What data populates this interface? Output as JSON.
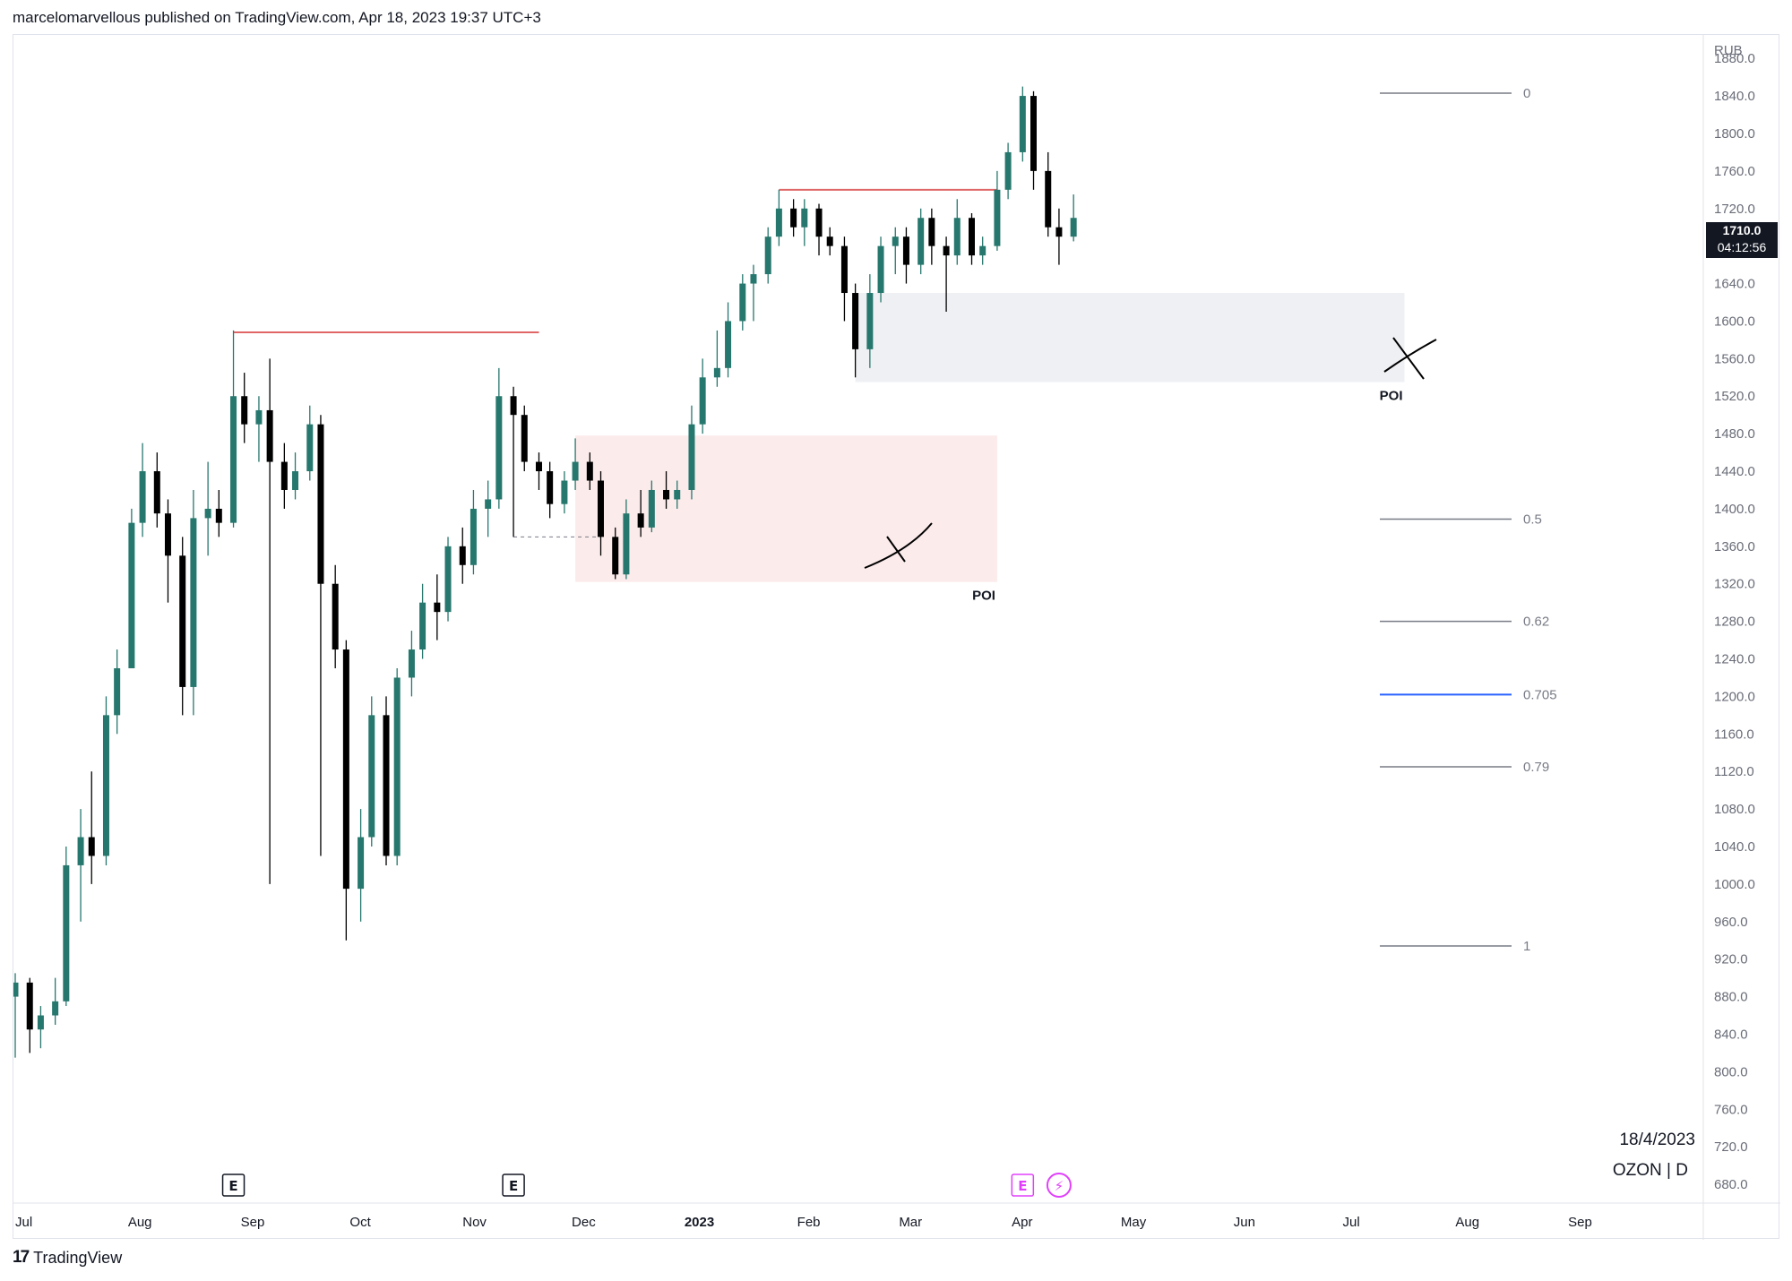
{
  "header": {
    "publisher_text": "marcelomarvellous published on TradingView.com, Apr 18, 2023 19:37 UTC+3"
  },
  "footer": {
    "brand_icon": "17",
    "brand_name": "TradingView"
  },
  "stamp": {
    "date": "18/4/2023",
    "symbol": "OZON | D"
  },
  "last_price": {
    "price": "1710.0",
    "countdown": "04:12:56"
  },
  "colors": {
    "bull": "#26776d",
    "bear": "#000000",
    "resistance": "#e06666",
    "poi_pink": "#fcebeb",
    "poi_gray": "#eff0f4",
    "fib_line": "#787b86",
    "fib_highlight": "#2962ff",
    "event_pink": "#e040fb"
  },
  "chart_data": {
    "type": "candlestick",
    "symbol": "OZON",
    "interval": "D",
    "currency": "RUB",
    "y_axis": {
      "unit_label": "RUB",
      "ticks": [
        "1880.0",
        "1840.0",
        "1800.0",
        "1760.0",
        "1720.0",
        "1680.0",
        "1640.0",
        "1600.0",
        "1560.0",
        "1520.0",
        "1480.0",
        "1440.0",
        "1400.0",
        "1360.0",
        "1320.0",
        "1280.0",
        "1240.0",
        "1200.0",
        "1160.0",
        "1120.0",
        "1080.0",
        "1040.0",
        "1000.0",
        "960.0",
        "920.0",
        "880.0",
        "840.0",
        "800.0",
        "760.0",
        "720.0",
        "680.0"
      ],
      "range": [
        660,
        1905
      ]
    },
    "x_axis": {
      "ticks": [
        "Jul",
        "Aug",
        "Sep",
        "Oct",
        "Nov",
        "Dec",
        "2023",
        "Feb",
        "Mar",
        "Apr",
        "May",
        "Jun",
        "Jul",
        "Aug",
        "Sep"
      ]
    },
    "candles": [
      {
        "date": "2022-07-01",
        "o": 880,
        "h": 905,
        "l": 815,
        "c": 895
      },
      {
        "date": "2022-07-05",
        "o": 895,
        "h": 900,
        "l": 820,
        "c": 845
      },
      {
        "date": "2022-07-08",
        "o": 845,
        "h": 870,
        "l": 825,
        "c": 860
      },
      {
        "date": "2022-07-12",
        "o": 860,
        "h": 900,
        "l": 850,
        "c": 875
      },
      {
        "date": "2022-07-15",
        "o": 875,
        "h": 1040,
        "l": 870,
        "c": 1020
      },
      {
        "date": "2022-07-19",
        "o": 1020,
        "h": 1080,
        "l": 960,
        "c": 1050
      },
      {
        "date": "2022-07-22",
        "o": 1050,
        "h": 1120,
        "l": 1000,
        "c": 1030
      },
      {
        "date": "2022-07-26",
        "o": 1030,
        "h": 1200,
        "l": 1020,
        "c": 1180
      },
      {
        "date": "2022-07-29",
        "o": 1180,
        "h": 1250,
        "l": 1160,
        "c": 1230
      },
      {
        "date": "2022-08-02",
        "o": 1230,
        "h": 1400,
        "l": 1230,
        "c": 1385
      },
      {
        "date": "2022-08-05",
        "o": 1385,
        "h": 1470,
        "l": 1370,
        "c": 1440
      },
      {
        "date": "2022-08-09",
        "o": 1440,
        "h": 1460,
        "l": 1380,
        "c": 1395
      },
      {
        "date": "2022-08-12",
        "o": 1395,
        "h": 1410,
        "l": 1300,
        "c": 1350
      },
      {
        "date": "2022-08-16",
        "o": 1350,
        "h": 1370,
        "l": 1180,
        "c": 1210
      },
      {
        "date": "2022-08-19",
        "o": 1210,
        "h": 1420,
        "l": 1180,
        "c": 1390
      },
      {
        "date": "2022-08-23",
        "o": 1390,
        "h": 1450,
        "l": 1350,
        "c": 1400
      },
      {
        "date": "2022-08-26",
        "o": 1400,
        "h": 1420,
        "l": 1370,
        "c": 1385
      },
      {
        "date": "2022-08-30",
        "o": 1385,
        "h": 1590,
        "l": 1380,
        "c": 1520
      },
      {
        "date": "2022-09-02",
        "o": 1520,
        "h": 1545,
        "l": 1470,
        "c": 1490
      },
      {
        "date": "2022-09-06",
        "o": 1490,
        "h": 1520,
        "l": 1450,
        "c": 1505
      },
      {
        "date": "2022-09-09",
        "o": 1505,
        "h": 1560,
        "l": 1000,
        "c": 1450
      },
      {
        "date": "2022-09-13",
        "o": 1450,
        "h": 1470,
        "l": 1400,
        "c": 1420
      },
      {
        "date": "2022-09-16",
        "o": 1420,
        "h": 1460,
        "l": 1410,
        "c": 1440
      },
      {
        "date": "2022-09-20",
        "o": 1440,
        "h": 1510,
        "l": 1430,
        "c": 1490
      },
      {
        "date": "2022-09-23",
        "o": 1490,
        "h": 1500,
        "l": 1030,
        "c": 1320
      },
      {
        "date": "2022-09-27",
        "o": 1320,
        "h": 1340,
        "l": 1230,
        "c": 1250
      },
      {
        "date": "2022-09-30",
        "o": 1250,
        "h": 1260,
        "l": 940,
        "c": 995
      },
      {
        "date": "2022-10-04",
        "o": 995,
        "h": 1080,
        "l": 960,
        "c": 1050
      },
      {
        "date": "2022-10-07",
        "o": 1050,
        "h": 1200,
        "l": 1040,
        "c": 1180
      },
      {
        "date": "2022-10-11",
        "o": 1180,
        "h": 1200,
        "l": 1020,
        "c": 1030
      },
      {
        "date": "2022-10-14",
        "o": 1030,
        "h": 1230,
        "l": 1020,
        "c": 1220
      },
      {
        "date": "2022-10-18",
        "o": 1220,
        "h": 1270,
        "l": 1200,
        "c": 1250
      },
      {
        "date": "2022-10-21",
        "o": 1250,
        "h": 1320,
        "l": 1240,
        "c": 1300
      },
      {
        "date": "2022-10-25",
        "o": 1300,
        "h": 1330,
        "l": 1260,
        "c": 1290
      },
      {
        "date": "2022-10-28",
        "o": 1290,
        "h": 1370,
        "l": 1280,
        "c": 1360
      },
      {
        "date": "2022-11-01",
        "o": 1360,
        "h": 1380,
        "l": 1320,
        "c": 1340
      },
      {
        "date": "2022-11-04",
        "o": 1340,
        "h": 1420,
        "l": 1330,
        "c": 1400
      },
      {
        "date": "2022-11-08",
        "o": 1400,
        "h": 1430,
        "l": 1370,
        "c": 1410
      },
      {
        "date": "2022-11-11",
        "o": 1410,
        "h": 1550,
        "l": 1400,
        "c": 1520
      },
      {
        "date": "2022-11-15",
        "o": 1520,
        "h": 1530,
        "l": 1370,
        "c": 1500
      },
      {
        "date": "2022-11-18",
        "o": 1500,
        "h": 1510,
        "l": 1440,
        "c": 1450
      },
      {
        "date": "2022-11-22",
        "o": 1450,
        "h": 1460,
        "l": 1420,
        "c": 1440
      },
      {
        "date": "2022-11-25",
        "o": 1440,
        "h": 1450,
        "l": 1390,
        "c": 1405
      },
      {
        "date": "2022-11-29",
        "o": 1405,
        "h": 1440,
        "l": 1395,
        "c": 1430
      },
      {
        "date": "2022-12-02",
        "o": 1430,
        "h": 1475,
        "l": 1420,
        "c": 1450
      },
      {
        "date": "2022-12-06",
        "o": 1450,
        "h": 1460,
        "l": 1420,
        "c": 1430
      },
      {
        "date": "2022-12-09",
        "o": 1430,
        "h": 1440,
        "l": 1350,
        "c": 1370
      },
      {
        "date": "2022-12-13",
        "o": 1370,
        "h": 1380,
        "l": 1325,
        "c": 1330
      },
      {
        "date": "2022-12-16",
        "o": 1330,
        "h": 1410,
        "l": 1325,
        "c": 1395
      },
      {
        "date": "2022-12-20",
        "o": 1395,
        "h": 1420,
        "l": 1370,
        "c": 1380
      },
      {
        "date": "2022-12-23",
        "o": 1380,
        "h": 1430,
        "l": 1375,
        "c": 1420
      },
      {
        "date": "2022-12-27",
        "o": 1420,
        "h": 1440,
        "l": 1400,
        "c": 1410
      },
      {
        "date": "2022-12-30",
        "o": 1410,
        "h": 1430,
        "l": 1400,
        "c": 1420
      },
      {
        "date": "2023-01-03",
        "o": 1420,
        "h": 1510,
        "l": 1410,
        "c": 1490
      },
      {
        "date": "2023-01-06",
        "o": 1490,
        "h": 1560,
        "l": 1480,
        "c": 1540
      },
      {
        "date": "2023-01-10",
        "o": 1540,
        "h": 1590,
        "l": 1530,
        "c": 1550
      },
      {
        "date": "2023-01-13",
        "o": 1550,
        "h": 1620,
        "l": 1540,
        "c": 1600
      },
      {
        "date": "2023-01-17",
        "o": 1600,
        "h": 1650,
        "l": 1590,
        "c": 1640
      },
      {
        "date": "2023-01-20",
        "o": 1640,
        "h": 1660,
        "l": 1600,
        "c": 1650
      },
      {
        "date": "2023-01-24",
        "o": 1650,
        "h": 1700,
        "l": 1640,
        "c": 1690
      },
      {
        "date": "2023-01-27",
        "o": 1690,
        "h": 1740,
        "l": 1680,
        "c": 1720
      },
      {
        "date": "2023-01-31",
        "o": 1720,
        "h": 1730,
        "l": 1690,
        "c": 1700
      },
      {
        "date": "2023-02-03",
        "o": 1700,
        "h": 1730,
        "l": 1680,
        "c": 1720
      },
      {
        "date": "2023-02-07",
        "o": 1720,
        "h": 1725,
        "l": 1670,
        "c": 1690
      },
      {
        "date": "2023-02-10",
        "o": 1690,
        "h": 1700,
        "l": 1670,
        "c": 1680
      },
      {
        "date": "2023-02-14",
        "o": 1680,
        "h": 1690,
        "l": 1600,
        "c": 1630
      },
      {
        "date": "2023-02-17",
        "o": 1630,
        "h": 1640,
        "l": 1540,
        "c": 1570
      },
      {
        "date": "2023-02-21",
        "o": 1570,
        "h": 1650,
        "l": 1550,
        "c": 1630
      },
      {
        "date": "2023-02-24",
        "o": 1630,
        "h": 1690,
        "l": 1620,
        "c": 1680
      },
      {
        "date": "2023-02-28",
        "o": 1680,
        "h": 1700,
        "l": 1650,
        "c": 1690
      },
      {
        "date": "2023-03-03",
        "o": 1690,
        "h": 1700,
        "l": 1640,
        "c": 1660
      },
      {
        "date": "2023-03-07",
        "o": 1660,
        "h": 1720,
        "l": 1650,
        "c": 1710
      },
      {
        "date": "2023-03-10",
        "o": 1710,
        "h": 1720,
        "l": 1660,
        "c": 1680
      },
      {
        "date": "2023-03-14",
        "o": 1680,
        "h": 1690,
        "l": 1610,
        "c": 1670
      },
      {
        "date": "2023-03-17",
        "o": 1670,
        "h": 1730,
        "l": 1660,
        "c": 1710
      },
      {
        "date": "2023-03-21",
        "o": 1710,
        "h": 1715,
        "l": 1660,
        "c": 1670
      },
      {
        "date": "2023-03-24",
        "o": 1670,
        "h": 1690,
        "l": 1660,
        "c": 1680
      },
      {
        "date": "2023-03-28",
        "o": 1680,
        "h": 1760,
        "l": 1675,
        "c": 1740
      },
      {
        "date": "2023-03-31",
        "o": 1740,
        "h": 1790,
        "l": 1730,
        "c": 1780
      },
      {
        "date": "2023-04-04",
        "o": 1780,
        "h": 1850,
        "l": 1770,
        "c": 1840
      },
      {
        "date": "2023-04-07",
        "o": 1840,
        "h": 1845,
        "l": 1740,
        "c": 1760
      },
      {
        "date": "2023-04-11",
        "o": 1760,
        "h": 1780,
        "l": 1690,
        "c": 1700
      },
      {
        "date": "2023-04-14",
        "o": 1700,
        "h": 1720,
        "l": 1660,
        "c": 1690
      },
      {
        "date": "2023-04-18",
        "o": 1690,
        "h": 1735,
        "l": 1685,
        "c": 1710
      }
    ],
    "fib_levels": [
      {
        "label": "0",
        "price": 1843
      },
      {
        "label": "0.5",
        "price": 1389
      },
      {
        "label": "0.62",
        "price": 1280
      },
      {
        "label": "0.705",
        "price": 1202,
        "highlight": true
      },
      {
        "label": "0.79",
        "price": 1125
      },
      {
        "label": "1",
        "price": 934
      }
    ],
    "annotations": [
      {
        "type": "zone",
        "label": "POI",
        "date_from": "2022-12-02",
        "date_to": "2023-03-28",
        "low": 1322,
        "high": 1478,
        "tone": "pink"
      },
      {
        "type": "zone",
        "label": "POI",
        "date_from": "2023-02-17",
        "date_to": "2023-07-18",
        "low": 1535,
        "high": 1630,
        "tone": "gray"
      },
      {
        "type": "hline",
        "date_from": "2022-08-30",
        "date_to": "2022-11-22",
        "price": 1588,
        "tone": "red"
      },
      {
        "type": "hline",
        "date_from": "2023-01-27",
        "date_to": "2023-03-28",
        "price": 1740,
        "tone": "red"
      },
      {
        "type": "hline",
        "date_from": "2022-11-15",
        "date_to": "2022-12-09",
        "price": 1370,
        "tone": "dashed"
      }
    ],
    "events": [
      {
        "date": "2022-08-30",
        "label": "E",
        "tone": "gray"
      },
      {
        "date": "2022-11-15",
        "label": "E",
        "tone": "gray"
      },
      {
        "date": "2023-04-04",
        "label": "E",
        "tone": "pink"
      },
      {
        "date": "2023-04-14",
        "label": "⚡",
        "tone": "pink"
      }
    ]
  }
}
